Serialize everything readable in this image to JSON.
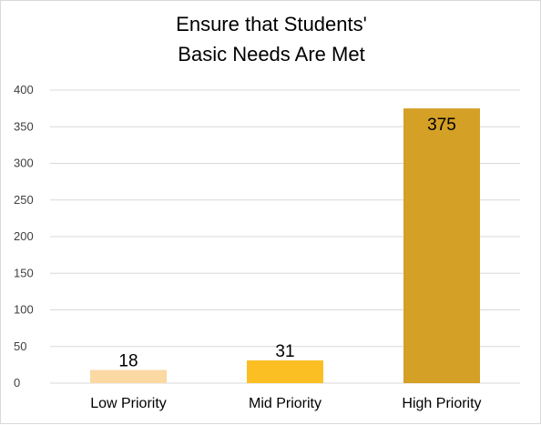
{
  "chart_data": {
    "type": "bar",
    "title_lines": [
      "Ensure that Students'",
      "Basic Needs Are Met"
    ],
    "categories": [
      "Low Priority",
      "Mid Priority",
      "High Priority"
    ],
    "values": [
      18,
      31,
      375
    ],
    "value_labels": [
      "18",
      "31",
      "375"
    ],
    "bar_colors": [
      "#fcd8a3",
      "#fbbf24",
      "#d4a026"
    ],
    "ylim": [
      0,
      400
    ],
    "y_ticks": [
      0,
      50,
      100,
      150,
      200,
      250,
      300,
      350,
      400
    ],
    "y_tick_labels": [
      "0",
      "50",
      "100",
      "150",
      "200",
      "250",
      "300",
      "350",
      "400"
    ],
    "grid": true,
    "legend": "none"
  }
}
